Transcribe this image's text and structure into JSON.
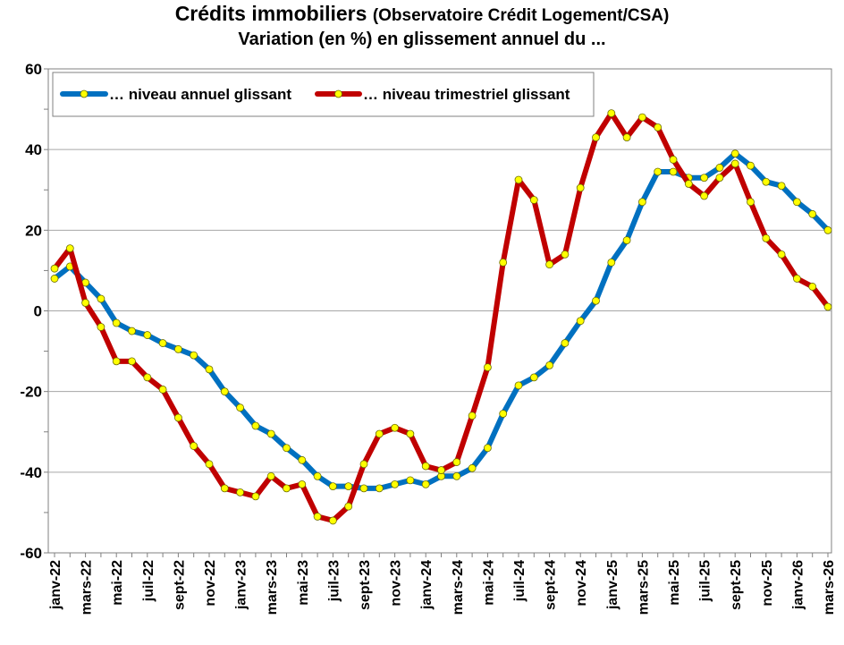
{
  "chart_data": {
    "type": "line",
    "title": "Crédits immobiliers",
    "title_source": "(Observatoire Crédit Logement/CSA)",
    "subtitle": "Variation (en %) en glissement annuel du ...",
    "ylim": [
      -60,
      60
    ],
    "yticks": [
      -60,
      -40,
      -20,
      0,
      20,
      40,
      60
    ],
    "grid": true,
    "legend_position": "top-left",
    "x": [
      "janv-22",
      "févr-22",
      "mars-22",
      "avr-22",
      "mai-22",
      "juin-22",
      "juil-22",
      "août-22",
      "sept-22",
      "oct-22",
      "nov-22",
      "déc-22",
      "janv-23",
      "févr-23",
      "mars-23",
      "avr-23",
      "mai-23",
      "juin-23",
      "juil-23",
      "août-23",
      "sept-23",
      "oct-23",
      "nov-23",
      "déc-23",
      "janv-24",
      "févr-24",
      "mars-24",
      "avr-24",
      "mai-24",
      "juin-24",
      "juil-24",
      "août-24",
      "sept-24",
      "oct-24",
      "nov-24",
      "déc-24",
      "janv-25",
      "févr-25",
      "mars-25",
      "avr-25",
      "mai-25",
      "juin-25",
      "juil-25",
      "août-25",
      "sept-25",
      "oct-25",
      "nov-25",
      "déc-25",
      "janv-26",
      "févr-26",
      "mars-26"
    ],
    "xtick_labels": [
      "janv-22",
      "",
      "mars-22",
      "",
      "mai-22",
      "",
      "juil-22",
      "",
      "sept-22",
      "",
      "nov-22",
      "",
      "janv-23",
      "",
      "mars-23",
      "",
      "mai-23",
      "",
      "juil-23",
      "",
      "sept-23",
      "",
      "nov-23",
      "",
      "janv-24",
      "",
      "mars-24",
      "",
      "mai-24",
      "",
      "juil-24",
      "",
      "sept-24",
      "",
      "nov-24",
      "",
      "janv-25",
      "",
      "mars-25",
      "",
      "mai-25",
      "",
      "juil-25",
      "",
      "sept-25",
      "",
      "nov-25",
      "",
      "janv-26",
      "",
      "mars-26"
    ],
    "series": [
      {
        "name": "… niveau annuel glissant",
        "color": "#0070C0",
        "values": [
          8,
          11,
          7,
          3,
          -3,
          -5,
          -6,
          -8,
          -9.5,
          -11,
          -14.5,
          -20,
          -24,
          -28.5,
          -30.5,
          -34,
          -37,
          -41,
          -43.5,
          -43.5,
          -44,
          -44,
          -43,
          -42,
          -43,
          -41,
          -41,
          -39,
          -34,
          -25.5,
          -18.5,
          -16.5,
          -13.5,
          -8,
          -2.5,
          2.5,
          12,
          17.5,
          27,
          34.5,
          34.5,
          33,
          33,
          35.5,
          39,
          36,
          32,
          31,
          27,
          24,
          20
        ]
      },
      {
        "name": "… niveau trimestriel glissant",
        "color": "#C00000",
        "values": [
          10.5,
          15.5,
          2,
          -4,
          -12.5,
          -12.5,
          -16.5,
          -19.5,
          -26.5,
          -33.5,
          -38,
          -44,
          -45,
          -46,
          -41,
          -44,
          -43,
          -51,
          -52,
          -48.5,
          -38,
          -30.5,
          -29,
          -30.5,
          -38.5,
          -39.5,
          -37.5,
          -26,
          -14,
          12,
          32.5,
          27.5,
          11.5,
          14,
          30.5,
          43,
          49,
          43,
          48,
          45.5,
          37.5,
          31.5,
          28.5,
          33,
          36.5,
          27,
          18,
          14,
          8,
          6,
          1
        ]
      }
    ]
  }
}
